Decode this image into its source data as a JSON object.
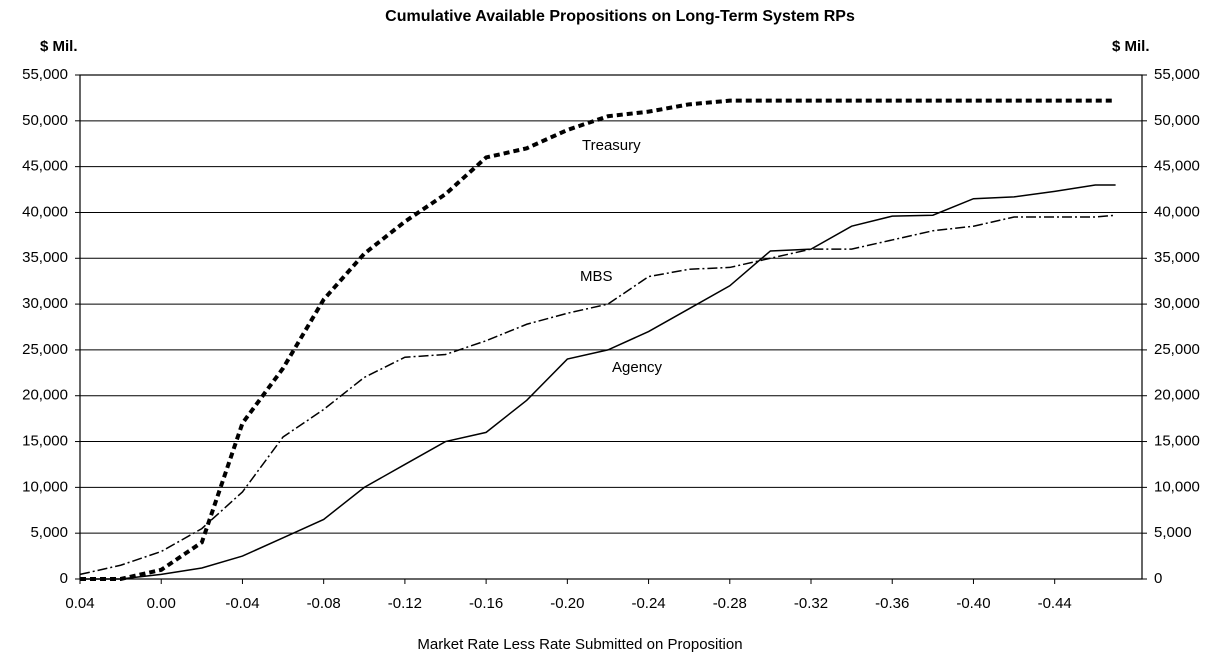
{
  "chart_data": {
    "type": "line",
    "title": "Cumulative Available Propositions on Long-Term System RPs",
    "ylabel": "$ Mil.",
    "y2label": "$ Mil.",
    "xlabel": "Market Rate Less Rate Submitted on Proposition",
    "annotations": [
      "Treasury",
      "MBS",
      "Agency"
    ],
    "x": [
      0.04,
      0.02,
      0,
      -0.02,
      -0.04,
      -0.06,
      -0.08,
      -0.1,
      -0.12,
      -0.14,
      -0.16,
      -0.18,
      -0.2,
      -0.22,
      -0.24,
      -0.26,
      -0.28,
      -0.3,
      -0.32,
      -0.34,
      -0.36,
      -0.38,
      -0.4,
      -0.42,
      -0.44,
      -0.46,
      -0.47
    ],
    "series": [
      {
        "name": "Treasury",
        "color": "#000000",
        "style": "dashed",
        "values": [
          0,
          0,
          1000,
          4000,
          17000,
          23000,
          30500,
          35500,
          39000,
          42000,
          46000,
          47000,
          49000,
          50500,
          51000,
          51800,
          52200,
          52200,
          52200,
          52200,
          52200,
          52200,
          52200,
          52200,
          52200,
          52200,
          52200
        ]
      },
      {
        "name": "MBS",
        "color": "#000000",
        "style": "dashdot",
        "values": [
          500,
          1500,
          3000,
          5500,
          9500,
          15500,
          18500,
          22000,
          24200,
          24500,
          26000,
          27800,
          29000,
          30000,
          33000,
          33800,
          34000,
          35000,
          36000,
          36000,
          37000,
          38000,
          38500,
          39500,
          39500,
          39500,
          39700
        ]
      },
      {
        "name": "Agency",
        "color": "#000000",
        "style": "solid",
        "values": [
          0,
          0,
          500,
          1200,
          2500,
          4500,
          6500,
          10000,
          12500,
          15000,
          16000,
          19500,
          24000,
          25000,
          27000,
          29500,
          32000,
          35800,
          36000,
          38500,
          39600,
          39700,
          41500,
          41700,
          42300,
          43000,
          43000
        ]
      }
    ],
    "xlim": [
      0.04,
      -0.483
    ],
    "xticks": [
      0.04,
      {
        "value": 0,
        "label": "0.00"
      },
      -0.04,
      -0.08,
      -0.12,
      -0.16,
      {
        "value": -0.2,
        "label": "-0.20"
      },
      -0.24,
      -0.28,
      -0.32,
      -0.36,
      {
        "value": -0.4,
        "label": "-0.40"
      },
      -0.44
    ],
    "ylim": [
      0,
      55000
    ],
    "yticks": [
      0,
      {
        "value": 5000,
        "label": "5,000"
      },
      {
        "value": 10000,
        "label": "10,000"
      },
      {
        "value": 15000,
        "label": "15,000"
      },
      {
        "value": 20000,
        "label": "20,000"
      },
      {
        "value": 25000,
        "label": "25,000"
      },
      {
        "value": 30000,
        "label": "30,000"
      },
      {
        "value": 35000,
        "label": "35,000"
      },
      {
        "value": 40000,
        "label": "40,000"
      },
      {
        "value": 45000,
        "label": "45,000"
      },
      {
        "value": 50000,
        "label": "50,000"
      },
      {
        "value": 55000,
        "label": "55,000"
      }
    ],
    "y2lim": [
      0,
      55000
    ],
    "y2ticks": [
      0,
      {
        "value": 5000,
        "label": "5,000"
      },
      {
        "value": 10000,
        "label": "10,000"
      },
      {
        "value": 15000,
        "label": "15,000"
      },
      {
        "value": 20000,
        "label": "20,000"
      },
      {
        "value": 25000,
        "label": "25,000"
      },
      {
        "value": 30000,
        "label": "30,000"
      },
      {
        "value": 35000,
        "label": "35,000"
      },
      {
        "value": 40000,
        "label": "40,000"
      },
      {
        "value": 45000,
        "label": "45,000"
      },
      {
        "value": 50000,
        "label": "50,000"
      },
      {
        "value": 55000,
        "label": "55,000"
      }
    ],
    "grid": true
  }
}
